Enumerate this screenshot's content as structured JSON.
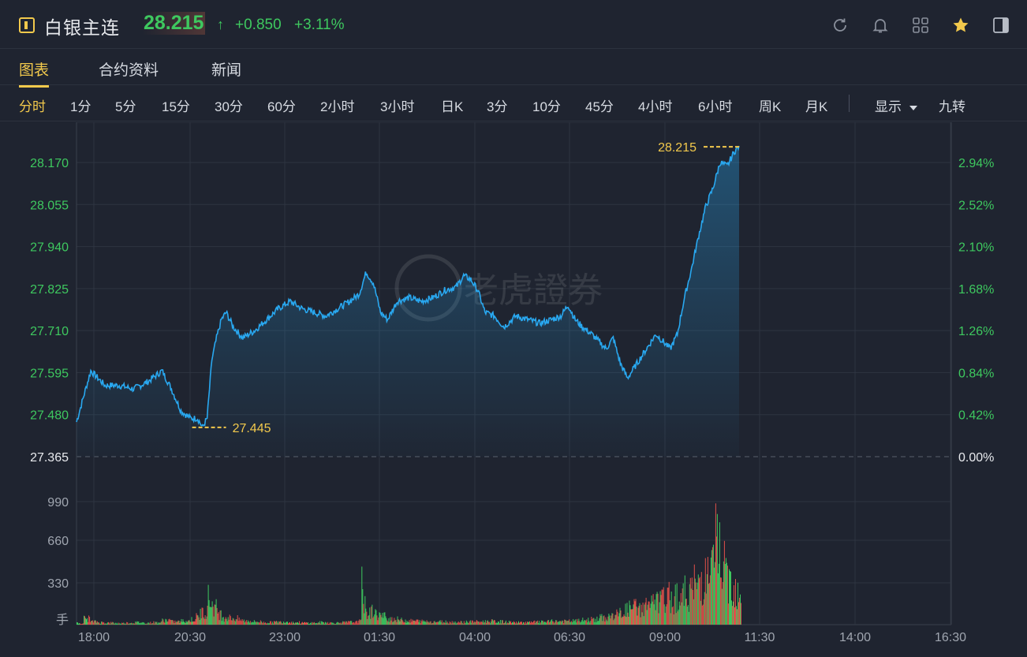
{
  "header": {
    "symbol_name": "白银主连",
    "price": "28.215",
    "price_arrow": "↑",
    "change": "+0.850",
    "change_pct": "+3.11%",
    "icons": [
      "refresh-icon",
      "bell-icon",
      "grid-icon",
      "star-icon",
      "panel-icon"
    ]
  },
  "tabs": [
    {
      "label": "图表",
      "active": true
    },
    {
      "label": "合约资料",
      "active": false
    },
    {
      "label": "新闻",
      "active": false
    }
  ],
  "periods": [
    {
      "label": "分时",
      "active": true
    },
    {
      "label": "1分"
    },
    {
      "label": "5分"
    },
    {
      "label": "15分"
    },
    {
      "label": "30分"
    },
    {
      "label": "60分"
    },
    {
      "label": "2小时"
    },
    {
      "label": "3小时"
    },
    {
      "label": "日K"
    },
    {
      "label": "3分"
    },
    {
      "label": "10分"
    },
    {
      "label": "45分"
    },
    {
      "label": "4小时"
    },
    {
      "label": "6小时"
    },
    {
      "label": "周K"
    },
    {
      "label": "月K"
    }
  ],
  "display_label": "显示",
  "jiuzhuan_label": "九转",
  "colors": {
    "accent": "#f2c94c",
    "up": "#3ec85f",
    "down": "#e0504a",
    "line": "#29a8f0",
    "bg": "#1f2430"
  },
  "watermark": "老虎證券",
  "chart_data": {
    "type": "line",
    "price_axis_ticks": [
      "28.170",
      "28.055",
      "27.940",
      "27.825",
      "27.710",
      "27.595",
      "27.480",
      "27.365"
    ],
    "pct_axis_ticks": [
      "2.94%",
      "2.52%",
      "2.10%",
      "1.68%",
      "1.26%",
      "0.84%",
      "0.42%",
      "0.00%"
    ],
    "volume_axis_ticks": [
      "990",
      "660",
      "330"
    ],
    "volume_unit": "手",
    "x_ticks": [
      "18:00",
      "20:30",
      "23:00",
      "01:30",
      "04:00",
      "06:30",
      "09:00",
      "11:30",
      "14:00",
      "16:30"
    ],
    "prev_close": 27.365,
    "y_range": [
      27.365,
      28.235
    ],
    "high_label": "28.215",
    "low_label": "27.445",
    "price_series": [
      [
        0,
        27.46
      ],
      [
        3,
        27.53
      ],
      [
        6,
        27.6
      ],
      [
        9,
        27.58
      ],
      [
        12,
        27.56
      ],
      [
        18,
        27.56
      ],
      [
        24,
        27.55
      ],
      [
        30,
        27.57
      ],
      [
        36,
        27.6
      ],
      [
        40,
        27.55
      ],
      [
        44,
        27.49
      ],
      [
        48,
        27.47
      ],
      [
        51,
        27.47
      ],
      [
        53,
        27.445
      ],
      [
        55,
        27.47
      ],
      [
        57,
        27.63
      ],
      [
        59,
        27.69
      ],
      [
        61,
        27.74
      ],
      [
        63,
        27.76
      ],
      [
        66,
        27.72
      ],
      [
        70,
        27.69
      ],
      [
        75,
        27.71
      ],
      [
        80,
        27.74
      ],
      [
        85,
        27.77
      ],
      [
        90,
        27.79
      ],
      [
        95,
        27.77
      ],
      [
        100,
        27.76
      ],
      [
        105,
        27.75
      ],
      [
        110,
        27.77
      ],
      [
        115,
        27.79
      ],
      [
        119,
        27.81
      ],
      [
        122,
        27.87
      ],
      [
        125,
        27.84
      ],
      [
        128,
        27.76
      ],
      [
        131,
        27.74
      ],
      [
        135,
        27.79
      ],
      [
        140,
        27.8
      ],
      [
        145,
        27.79
      ],
      [
        150,
        27.8
      ],
      [
        155,
        27.82
      ],
      [
        160,
        27.83
      ],
      [
        163,
        27.86
      ],
      [
        166,
        27.85
      ],
      [
        169,
        27.82
      ],
      [
        172,
        27.76
      ],
      [
        176,
        27.75
      ],
      [
        180,
        27.72
      ],
      [
        185,
        27.75
      ],
      [
        190,
        27.74
      ],
      [
        195,
        27.73
      ],
      [
        200,
        27.74
      ],
      [
        204,
        27.75
      ],
      [
        207,
        27.78
      ],
      [
        210,
        27.74
      ],
      [
        213,
        27.72
      ],
      [
        217,
        27.7
      ],
      [
        220,
        27.68
      ],
      [
        223,
        27.66
      ],
      [
        226,
        27.69
      ],
      [
        229,
        27.62
      ],
      [
        232,
        27.58
      ],
      [
        235,
        27.61
      ],
      [
        238,
        27.64
      ],
      [
        241,
        27.67
      ],
      [
        244,
        27.7
      ],
      [
        247,
        27.68
      ],
      [
        250,
        27.66
      ],
      [
        253,
        27.7
      ],
      [
        256,
        27.8
      ],
      [
        259,
        27.88
      ],
      [
        262,
        27.97
      ],
      [
        265,
        28.05
      ],
      [
        268,
        28.1
      ],
      [
        271,
        28.17
      ],
      [
        274,
        28.16
      ],
      [
        277,
        28.2
      ],
      [
        279,
        28.215
      ]
    ],
    "volume_max": 1320,
    "volume_series": [
      [
        0,
        20,
        "u"
      ],
      [
        3,
        80,
        "d"
      ],
      [
        6,
        40,
        "u"
      ],
      [
        9,
        30,
        "d"
      ],
      [
        12,
        25,
        "u"
      ],
      [
        16,
        20,
        "d"
      ],
      [
        20,
        25,
        "u"
      ],
      [
        24,
        30,
        "d"
      ],
      [
        28,
        25,
        "u"
      ],
      [
        32,
        30,
        "d"
      ],
      [
        36,
        60,
        "u"
      ],
      [
        40,
        40,
        "d"
      ],
      [
        44,
        50,
        "u"
      ],
      [
        48,
        70,
        "d"
      ],
      [
        50,
        100,
        "u"
      ],
      [
        52,
        160,
        "d"
      ],
      [
        54,
        190,
        "u"
      ],
      [
        55,
        350,
        "d"
      ],
      [
        56,
        310,
        "u"
      ],
      [
        57,
        260,
        "d"
      ],
      [
        58,
        220,
        "u"
      ],
      [
        59,
        180,
        "d"
      ],
      [
        60,
        140,
        "u"
      ],
      [
        61,
        120,
        "d"
      ],
      [
        62,
        100,
        "u"
      ],
      [
        64,
        90,
        "d"
      ],
      [
        66,
        80,
        "u"
      ],
      [
        68,
        60,
        "d"
      ],
      [
        70,
        50,
        "u"
      ],
      [
        74,
        40,
        "d"
      ],
      [
        78,
        30,
        "u"
      ],
      [
        82,
        35,
        "d"
      ],
      [
        86,
        40,
        "u"
      ],
      [
        90,
        30,
        "d"
      ],
      [
        94,
        25,
        "u"
      ],
      [
        98,
        25,
        "d"
      ],
      [
        102,
        30,
        "u"
      ],
      [
        106,
        25,
        "d"
      ],
      [
        110,
        30,
        "u"
      ],
      [
        114,
        35,
        "d"
      ],
      [
        118,
        45,
        "u"
      ],
      [
        120,
        590,
        "u"
      ],
      [
        121,
        240,
        "d"
      ],
      [
        122,
        150,
        "u"
      ],
      [
        124,
        180,
        "d"
      ],
      [
        126,
        130,
        "u"
      ],
      [
        128,
        110,
        "d"
      ],
      [
        130,
        90,
        "u"
      ],
      [
        132,
        80,
        "d"
      ],
      [
        134,
        70,
        "u"
      ],
      [
        136,
        60,
        "d"
      ],
      [
        138,
        55,
        "u"
      ],
      [
        140,
        50,
        "d"
      ],
      [
        142,
        50,
        "u"
      ],
      [
        144,
        45,
        "d"
      ],
      [
        146,
        45,
        "u"
      ],
      [
        148,
        40,
        "d"
      ],
      [
        152,
        40,
        "u"
      ],
      [
        156,
        35,
        "d"
      ],
      [
        160,
        35,
        "u"
      ],
      [
        164,
        40,
        "d"
      ],
      [
        168,
        40,
        "u"
      ],
      [
        172,
        45,
        "d"
      ],
      [
        176,
        40,
        "u"
      ],
      [
        180,
        35,
        "d"
      ],
      [
        184,
        30,
        "u"
      ],
      [
        188,
        30,
        "d"
      ],
      [
        192,
        35,
        "u"
      ],
      [
        196,
        40,
        "d"
      ],
      [
        200,
        45,
        "u"
      ],
      [
        204,
        45,
        "d"
      ],
      [
        208,
        50,
        "u"
      ],
      [
        212,
        60,
        "d"
      ],
      [
        216,
        70,
        "u"
      ],
      [
        220,
        90,
        "d"
      ],
      [
        224,
        110,
        "u"
      ],
      [
        226,
        130,
        "d"
      ],
      [
        228,
        150,
        "u"
      ],
      [
        230,
        190,
        "d"
      ],
      [
        232,
        210,
        "u"
      ],
      [
        234,
        230,
        "d"
      ],
      [
        236,
        200,
        "u"
      ],
      [
        238,
        250,
        "d"
      ],
      [
        240,
        290,
        "u"
      ],
      [
        242,
        270,
        "d"
      ],
      [
        244,
        300,
        "u"
      ],
      [
        246,
        320,
        "d"
      ],
      [
        248,
        360,
        "u"
      ],
      [
        250,
        330,
        "d"
      ],
      [
        252,
        380,
        "u"
      ],
      [
        254,
        360,
        "d"
      ],
      [
        256,
        420,
        "u"
      ],
      [
        258,
        460,
        "d"
      ],
      [
        260,
        520,
        "u"
      ],
      [
        262,
        580,
        "d"
      ],
      [
        264,
        620,
        "u"
      ],
      [
        266,
        700,
        "d"
      ],
      [
        268,
        780,
        "u"
      ],
      [
        269,
        1120,
        "u"
      ],
      [
        270,
        960,
        "d"
      ],
      [
        271,
        820,
        "u"
      ],
      [
        272,
        700,
        "d"
      ],
      [
        273,
        650,
        "u"
      ],
      [
        274,
        620,
        "d"
      ],
      [
        275,
        560,
        "u"
      ],
      [
        276,
        520,
        "d"
      ],
      [
        277,
        490,
        "u"
      ],
      [
        278,
        460,
        "d"
      ],
      [
        279,
        440,
        "u"
      ]
    ]
  }
}
